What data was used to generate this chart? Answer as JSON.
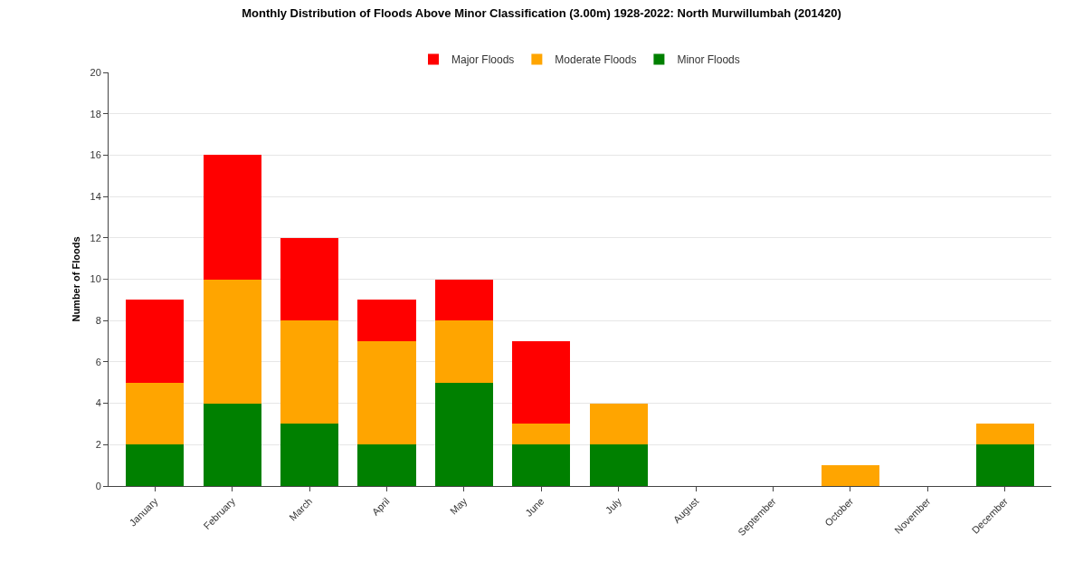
{
  "chart_data": {
    "type": "bar",
    "title": "Monthly Distribution of Floods Above Minor Classification (3.00m) 1928-2022: North Murwillumbah (201420)",
    "ylabel": "Number of Floods",
    "categories": [
      "January",
      "February",
      "March",
      "April",
      "May",
      "June",
      "July",
      "August",
      "September",
      "October",
      "November",
      "December"
    ],
    "stacked": true,
    "series": [
      {
        "name": "Minor Floods",
        "color": "#008000",
        "values": [
          2,
          4,
          3,
          2,
          5,
          2,
          2,
          0,
          0,
          0,
          0,
          2
        ]
      },
      {
        "name": "Moderate Floods",
        "color": "#ffa500",
        "values": [
          3,
          6,
          5,
          5,
          3,
          1,
          2,
          0,
          0,
          1,
          0,
          1
        ]
      },
      {
        "name": "Major Floods",
        "color": "#ff0000",
        "values": [
          4,
          6,
          4,
          2,
          2,
          4,
          0,
          0,
          0,
          0,
          0,
          0
        ]
      }
    ],
    "ylim": [
      0,
      20
    ],
    "yticks": [
      0,
      2,
      4,
      6,
      8,
      10,
      12,
      14,
      16,
      18,
      20
    ],
    "grid": "y",
    "legend": "top"
  }
}
